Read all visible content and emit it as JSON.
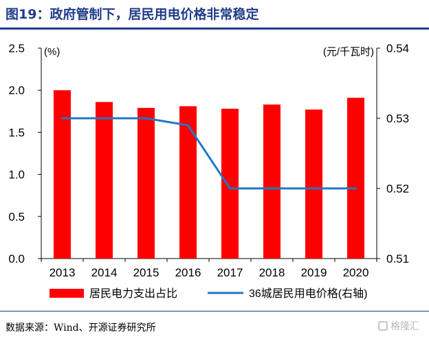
{
  "title": "图19：政府管制下，居民用电价格非常稳定",
  "source": "数据来源：Wind、开源证券研究所",
  "watermark": "格隆汇",
  "colors": {
    "title": "#1f3c88",
    "bar": "#ff0000",
    "line": "#1f78c1"
  },
  "chart_data": {
    "type": "bar",
    "categories": [
      "2013",
      "2014",
      "2015",
      "2016",
      "2017",
      "2018",
      "2019",
      "2020"
    ],
    "left_axis": {
      "unit": "(%)",
      "ylim": [
        0,
        2.5
      ],
      "ticks": [
        "0.0",
        "0.5",
        "1.0",
        "1.5",
        "2.0",
        "2.5"
      ]
    },
    "right_axis": {
      "unit": "(元/千瓦时)",
      "ylim": [
        0.51,
        0.54
      ],
      "ticks": [
        "0.51",
        "0.52",
        "0.53",
        "0.54"
      ]
    },
    "series": [
      {
        "name": "居民电力支出占比",
        "type": "bar",
        "axis": "left",
        "values": [
          2.0,
          1.86,
          1.79,
          1.81,
          1.78,
          1.83,
          1.77,
          1.91
        ]
      },
      {
        "name": "36城居民用电价格(右轴)",
        "type": "line",
        "axis": "right",
        "values": [
          0.53,
          0.53,
          0.53,
          0.529,
          0.52,
          0.52,
          0.52,
          0.52
        ]
      }
    ],
    "grid": false,
    "legend_position": "bottom"
  }
}
